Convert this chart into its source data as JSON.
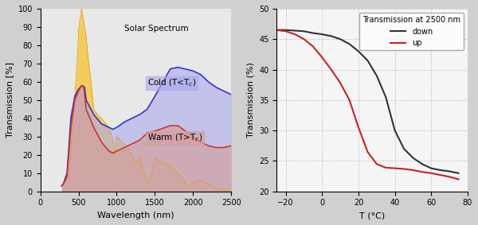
{
  "left": {
    "bg_color": "#e8e8e8",
    "xlabel": "Wavelength (nm)",
    "ylabel": "Transmission [%]",
    "xlim": [
      0,
      2500
    ],
    "ylim": [
      0,
      100
    ],
    "xticks": [
      0,
      500,
      1000,
      1500,
      2000,
      2500
    ],
    "yticks": [
      0,
      10,
      20,
      30,
      40,
      50,
      60,
      70,
      80,
      90,
      100
    ],
    "solar_color": "#f5c842",
    "solar_edge_color": "#d4a017",
    "cold_color_fill": "#aaaaee",
    "cold_line_color": "#3333cc",
    "warm_color_fill": "#d4a0a0",
    "warm_line_color": "#cc3333",
    "label_solar": "Solar Spectrum",
    "label_cold": "Cold (T<Tₙ)",
    "label_warm": "Warm (T>Tₙ)"
  },
  "right": {
    "bg_color": "#f5f5f5",
    "xlabel": "T (°C)",
    "ylabel": "Transmission (%)",
    "xlim": [
      -25,
      80
    ],
    "ylim": [
      20,
      50
    ],
    "xticks": [
      -20,
      0,
      20,
      40,
      60,
      80
    ],
    "yticks": [
      20,
      25,
      30,
      35,
      40,
      45,
      50
    ],
    "down_color": "#333333",
    "up_color": "#cc2222",
    "legend_title": "Transmission at 2500 nm",
    "label_down": "down",
    "label_up": "up"
  }
}
